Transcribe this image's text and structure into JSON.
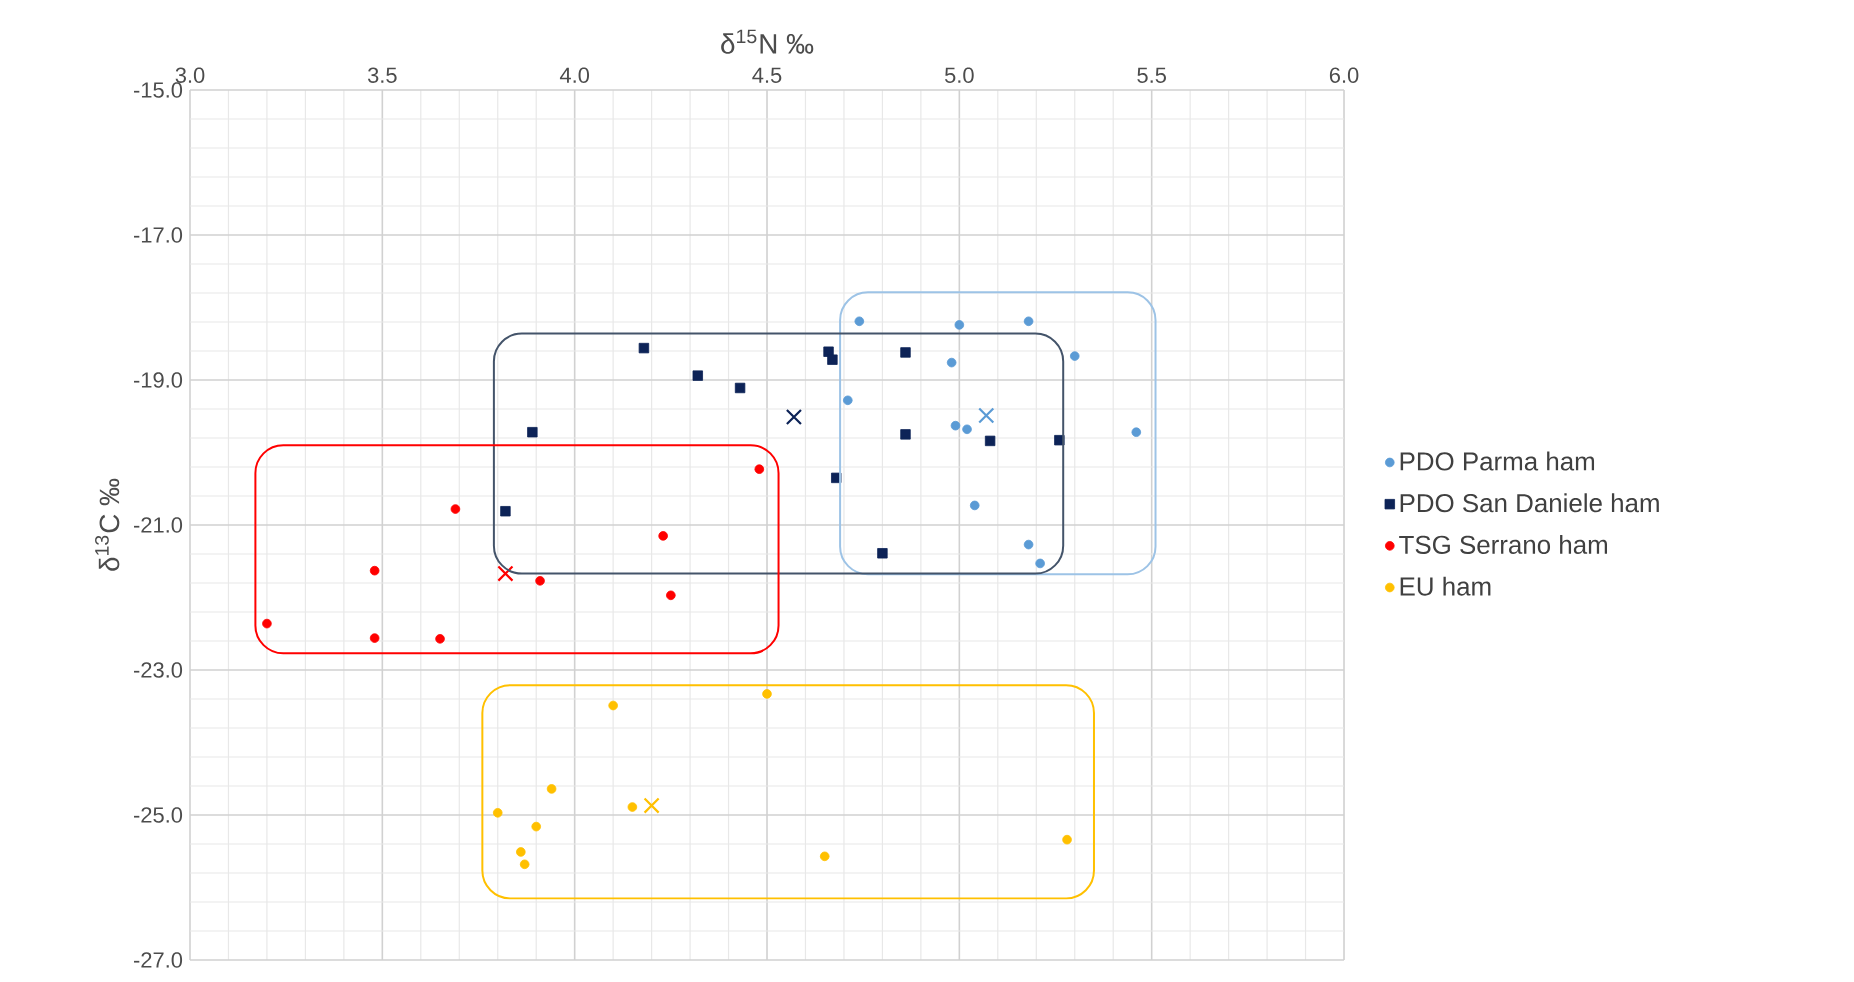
{
  "chart_data": {
    "type": "scatter",
    "xlabel": "δ$^{15}$N ‰",
    "ylabel": "δ$^{13}$C ‰",
    "xlim": [
      3.0,
      6.0
    ],
    "ylim": [
      -27.0,
      -15.0
    ],
    "xticks": [
      {
        "value": 3.0,
        "label": "3.0"
      },
      {
        "value": 3.5,
        "label": "3.5"
      },
      {
        "value": 4.0,
        "label": "4.0"
      },
      {
        "value": 4.5,
        "label": "4.5"
      },
      {
        "value": 5.0,
        "label": "5.0"
      },
      {
        "value": 5.5,
        "label": "5.5"
      },
      {
        "value": 6.0,
        "label": "6.0"
      }
    ],
    "yticks": [
      {
        "value": -15,
        "label": "-15.0"
      },
      {
        "value": -17,
        "label": "-17.0"
      },
      {
        "value": -19,
        "label": "-19.0"
      },
      {
        "value": -21,
        "label": "-21.0"
      },
      {
        "value": -23,
        "label": "-23.0"
      },
      {
        "value": -25,
        "label": "-25.0"
      },
      {
        "value": -27,
        "label": "-27.0"
      }
    ],
    "grid": true,
    "legend": "right",
    "series": [
      {
        "name": "PDO Parma ham",
        "color": "#5b9bd5",
        "marker": "circle",
        "x": [
          4.74,
          5.0,
          5.18,
          5.3,
          4.98,
          4.71,
          4.99,
          5.02,
          5.46,
          5.04,
          5.18,
          5.21
        ],
        "values": [
          -18.19,
          -18.24,
          -18.19,
          -18.67,
          -18.76,
          -19.28,
          -19.63,
          -19.68,
          -19.72,
          -20.73,
          -21.27,
          -21.53
        ]
      },
      {
        "name": "PDO San Daniele ham",
        "color": "#0d2357",
        "marker": "square",
        "x": [
          4.66,
          4.67,
          4.86,
          4.86,
          5.08,
          5.26,
          4.68,
          4.8,
          4.18,
          4.32,
          4.43,
          3.89,
          3.82
        ],
        "values": [
          -18.61,
          -18.72,
          -18.62,
          -19.75,
          -19.84,
          -19.83,
          -20.35,
          -21.39,
          -18.56,
          -18.94,
          -19.11,
          -19.72,
          -20.81
        ]
      },
      {
        "name": "TSG Serrano ham",
        "color": "#ff0000",
        "marker": "circle",
        "x": [
          3.2,
          3.48,
          3.48,
          3.65,
          3.69,
          3.91,
          4.23,
          4.25,
          4.48
        ],
        "values": [
          -22.36,
          -21.63,
          -22.56,
          -22.57,
          -20.78,
          -21.77,
          -21.15,
          -21.97,
          -20.23
        ]
      },
      {
        "name": "EU ham",
        "color": "#ffc000",
        "marker": "circle",
        "x": [
          3.8,
          3.86,
          3.87,
          3.9,
          3.94,
          4.1,
          4.15,
          4.5,
          4.65,
          5.28
        ],
        "values": [
          -24.97,
          -25.51,
          -25.68,
          -25.16,
          -24.64,
          -23.49,
          -24.89,
          -23.33,
          -25.57,
          -25.34
        ]
      },
      {
        "colors": [
          "#5b9bd5",
          "#0d2357",
          "#ff0000",
          "#ffc000"
        ],
        "marker": "cross",
        "x": [
          5.07,
          4.57,
          3.82,
          4.2
        ],
        "values": [
          -19.49,
          -19.51,
          -21.67,
          -24.87
        ]
      }
    ]
  }
}
